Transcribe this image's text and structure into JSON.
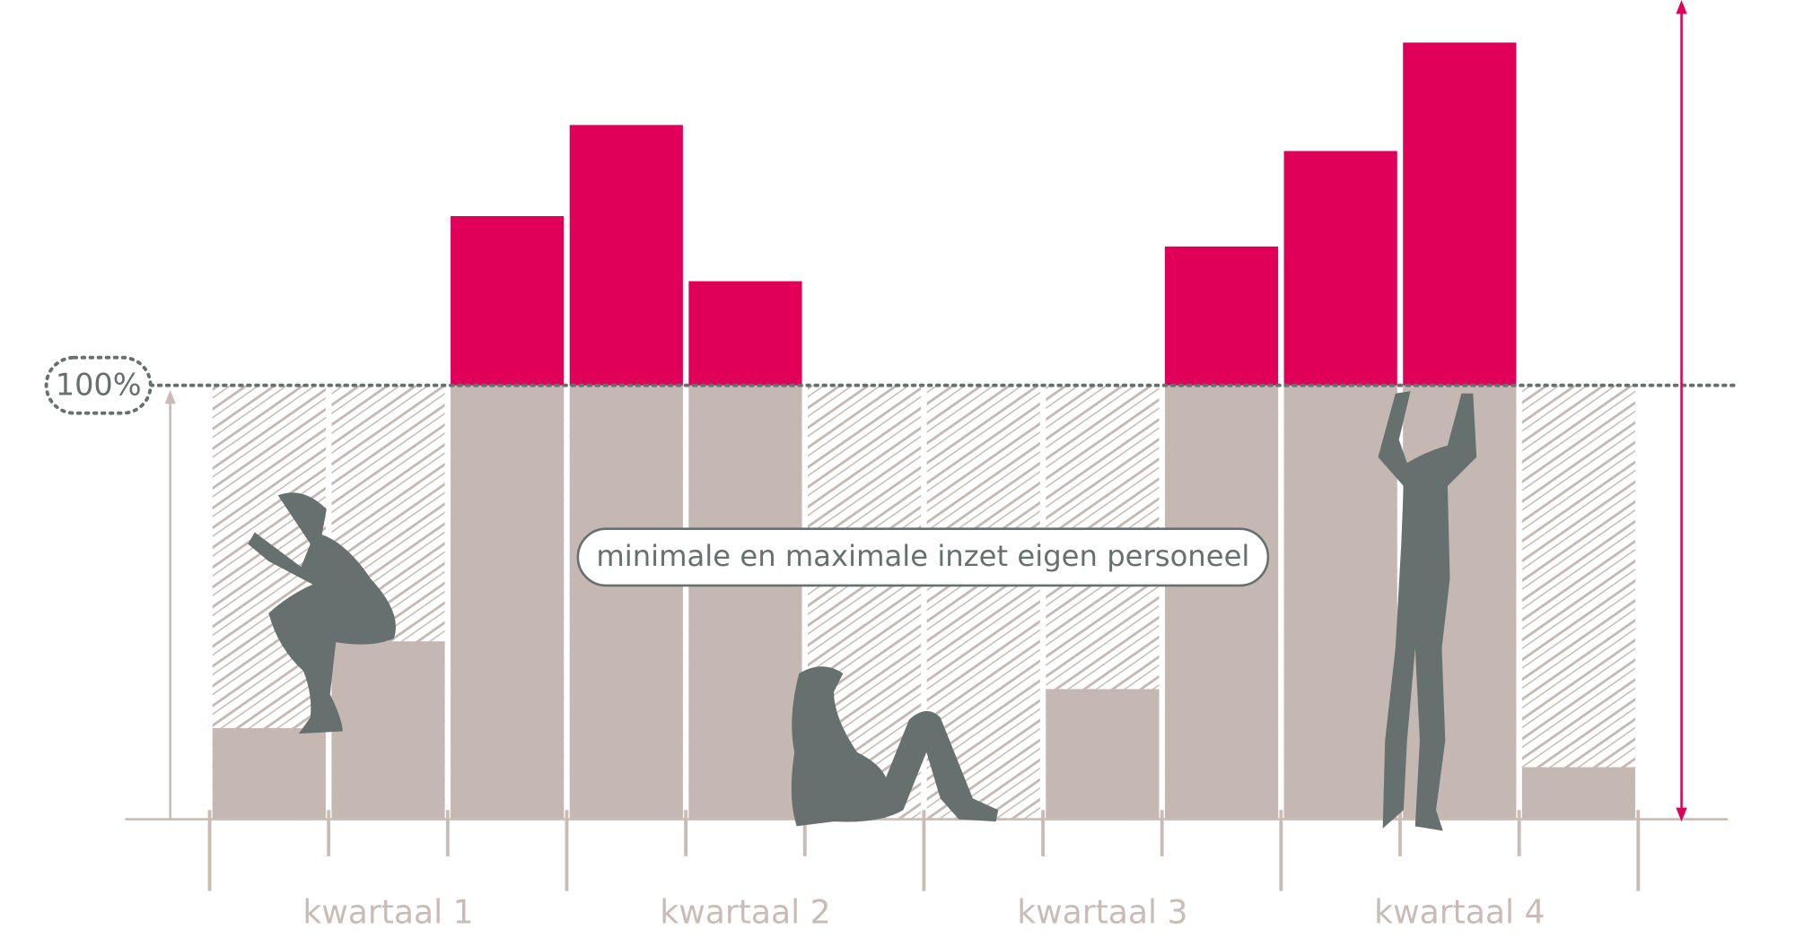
{
  "chart_data": {
    "type": "bar",
    "categories": [
      null,
      null,
      null,
      null,
      null,
      null,
      null,
      null,
      null,
      null,
      null,
      null
    ],
    "values": [
      21,
      41,
      139,
      160,
      124,
      0,
      0,
      30,
      132,
      154,
      179,
      12
    ],
    "group_labels": [
      "kwartaal 1",
      "kwartaal 2",
      "kwartaal 3",
      "kwartaal 4"
    ],
    "ylim": [
      0,
      180
    ],
    "yticks": [
      {
        "value": 100,
        "label": "100%"
      }
    ],
    "annotation": "minimale en maximale inzet eigen personeel",
    "color": "#c5b8b2",
    "over_color": "#e0005a",
    "axis_color": "#c9bcb6",
    "figure_color": "#66706f"
  }
}
